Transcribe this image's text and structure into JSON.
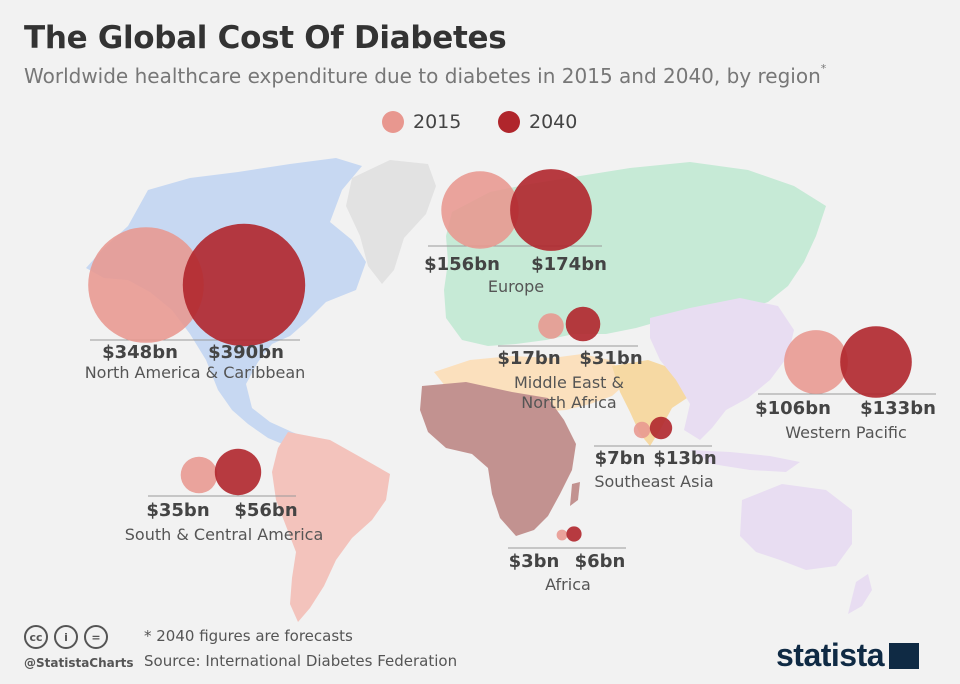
{
  "title": "The Global Cost Of Diabetes",
  "subtitle": "Worldwide healthcare expenditure due to diabetes in 2015 and 2040, by region",
  "subtitle_mark": "*",
  "legend": [
    {
      "label": "2015",
      "color": "#e8978f"
    },
    {
      "label": "2040",
      "color": "#b0262c"
    }
  ],
  "chart_data": {
    "type": "bubble-map",
    "unit": "$bn",
    "series_names": [
      "2015",
      "2040"
    ],
    "regions": [
      {
        "name": "North America & Caribbean",
        "v2015": 348,
        "v2040": 390,
        "label2015": "$348bn",
        "label2040": "$390bn"
      },
      {
        "name": "Europe",
        "v2015": 156,
        "v2040": 174,
        "label2015": "$156bn",
        "label2040": "$174bn"
      },
      {
        "name": "Middle East & North Africa",
        "v2015": 17,
        "v2040": 31,
        "label2015": "$17bn",
        "label2040": "$31bn"
      },
      {
        "name": "Western Pacific",
        "v2015": 106,
        "v2040": 133,
        "label2015": "$106bn",
        "label2040": "$133bn"
      },
      {
        "name": "Southeast Asia",
        "v2015": 7,
        "v2040": 13,
        "label2015": "$7bn",
        "label2040": "$13bn"
      },
      {
        "name": "South & Central America",
        "v2015": 35,
        "v2040": 56,
        "label2015": "$35bn",
        "label2040": "$56bn"
      },
      {
        "name": "Africa",
        "v2015": 3,
        "v2040": 6,
        "label2015": "$3bn",
        "label2040": "$6bn"
      }
    ]
  },
  "colors": {
    "north_america": "#c7d8f2",
    "south_america": "#f3c3bc",
    "europe_asia": "#c6ead6",
    "mena": "#fbe0bd",
    "africa": "#c29290",
    "southeast_asia": "#f6d9a3",
    "western_pacific": "#e8ddf2",
    "greenland": "#e2e2e2",
    "bubble_2015": "#e8978f",
    "bubble_2040": "#b0262c"
  },
  "footer": {
    "note": "* 2040 figures are forecasts",
    "source": "Source: International Diabetes Federation",
    "handle": "@StatistaCharts",
    "brand": "statista",
    "cc_icons": [
      "cc-icon",
      "by-icon",
      "nd-icon"
    ]
  }
}
